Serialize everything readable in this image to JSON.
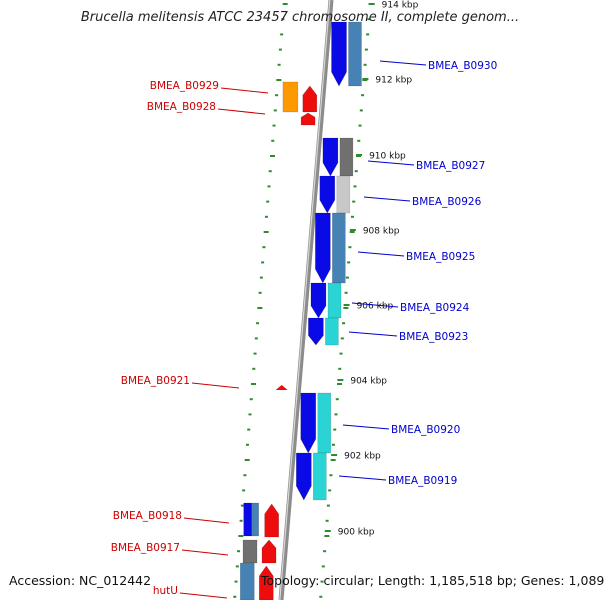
{
  "title": "Brucella melitensis ATCC 23457 chromosome II, complete genom...",
  "footer": {
    "accession": "Accession: NC_012442",
    "summary": "Topology: circular; Length: 1,185,518 bp; Genes: 1,089"
  },
  "colors": {
    "backbone": "#8c8c8c",
    "tick": "#2e8b2e",
    "forward_label": "#0000cc",
    "reverse_label": "#cc0000",
    "blue": "#0a0ae6",
    "cyan": "#2ad4d4",
    "red": "#ee0d0d",
    "orange": "#ff9900",
    "steel": "#4682b4",
    "grey": "#707070",
    "lightgrey": "#c8c8c8"
  },
  "scale_labels": [
    "914 kbp",
    "912 kbp",
    "910 kbp",
    "908 kbp",
    "906 kbp",
    "904 kbp",
    "902 kbp",
    "900 kbp"
  ],
  "genes": [
    {
      "name": "BMEA_B0930",
      "strand": "forward"
    },
    {
      "name": "BMEA_B0929",
      "strand": "reverse"
    },
    {
      "name": "BMEA_B0928",
      "strand": "reverse"
    },
    {
      "name": "BMEA_B0927",
      "strand": "forward"
    },
    {
      "name": "BMEA_B0926",
      "strand": "forward"
    },
    {
      "name": "BMEA_B0925",
      "strand": "forward"
    },
    {
      "name": "BMEA_B0924",
      "strand": "forward"
    },
    {
      "name": "BMEA_B0923",
      "strand": "forward"
    },
    {
      "name": "BMEA_B0921",
      "strand": "reverse"
    },
    {
      "name": "BMEA_B0920",
      "strand": "forward"
    },
    {
      "name": "BMEA_B0919",
      "strand": "forward"
    },
    {
      "name": "BMEA_B0918",
      "strand": "reverse"
    },
    {
      "name": "BMEA_B0917",
      "strand": "reverse"
    },
    {
      "name": "hutU",
      "strand": "reverse"
    }
  ]
}
